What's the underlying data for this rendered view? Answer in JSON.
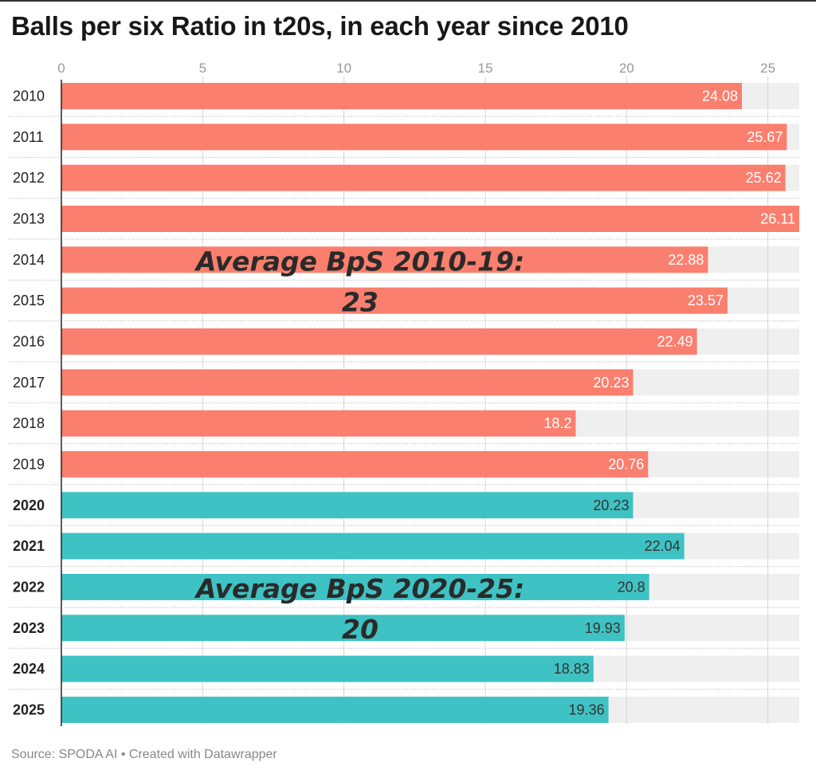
{
  "title": "Balls per six Ratio in t20s, in each year since 2010",
  "source": "Source: SPODA AI • Created with Datawrapper",
  "colors": {
    "period1": "#fa7f6e",
    "period2": "#3fc2c3",
    "track": "#efefef",
    "label_on_period1": "#ffffff",
    "label_on_period2": "#333333"
  },
  "chart_data": {
    "type": "bar",
    "orientation": "horizontal",
    "xlim": [
      0,
      26.11
    ],
    "ticks": [
      0,
      5,
      10,
      15,
      20,
      25
    ],
    "grid": true,
    "categories": [
      "2010",
      "2011",
      "2012",
      "2013",
      "2014",
      "2015",
      "2016",
      "2017",
      "2018",
      "2019",
      "2020",
      "2021",
      "2022",
      "2023",
      "2024",
      "2025"
    ],
    "values": [
      24.08,
      25.67,
      25.62,
      26.11,
      22.88,
      23.57,
      22.49,
      20.23,
      18.2,
      20.76,
      20.23,
      22.04,
      20.8,
      19.93,
      18.83,
      19.36
    ],
    "groups": [
      "period1",
      "period1",
      "period1",
      "period1",
      "period1",
      "period1",
      "period1",
      "period1",
      "period1",
      "period1",
      "period2",
      "period2",
      "period2",
      "period2",
      "period2",
      "period2"
    ],
    "bold_categories": [
      "2020",
      "2021",
      "2022",
      "2023",
      "2024",
      "2025"
    ],
    "annotations": [
      {
        "lines": [
          "Average BpS 2010-19:",
          "23"
        ],
        "near_category": "2014"
      },
      {
        "lines": [
          "Average BpS 2020-25:",
          "20"
        ],
        "near_category": "2022"
      }
    ]
  }
}
